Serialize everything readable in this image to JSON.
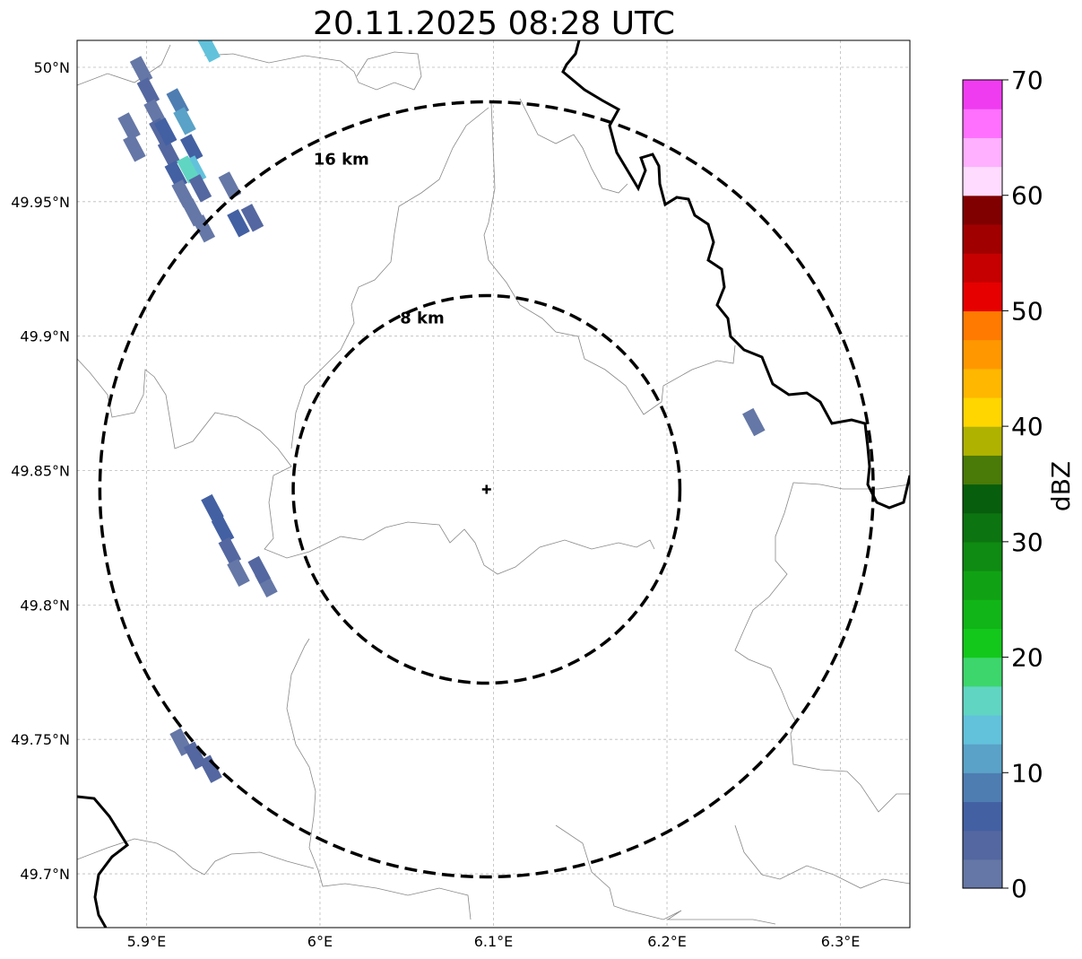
{
  "title": "20.11.2025 08:28 UTC",
  "map": {
    "lon_range": [
      5.86,
      6.34
    ],
    "lat_range": [
      49.68,
      50.01
    ],
    "lon_ticks": [
      {
        "value": 5.9,
        "label": "5.9°E"
      },
      {
        "value": 6.0,
        "label": "6°E"
      },
      {
        "value": 6.1,
        "label": "6.1°E"
      },
      {
        "value": 6.2,
        "label": "6.2°E"
      },
      {
        "value": 6.3,
        "label": "6.3°E"
      }
    ],
    "lat_ticks": [
      {
        "value": 50.0,
        "label": "50°N"
      },
      {
        "value": 49.95,
        "label": "49.95°N"
      },
      {
        "value": 49.9,
        "label": "49.9°N"
      },
      {
        "value": 49.85,
        "label": "49.85°N"
      },
      {
        "value": 49.8,
        "label": "49.8°N"
      },
      {
        "value": 49.75,
        "label": "49.75°N"
      },
      {
        "value": 49.7,
        "label": "49.7°N"
      }
    ],
    "radar_center": {
      "lon": 6.096,
      "lat": 49.843
    },
    "range_rings": [
      {
        "radius_km": 8,
        "label": "8 km"
      },
      {
        "radius_km": 16,
        "label": "16 km"
      }
    ],
    "echo_cells": [
      {
        "lon": 5.897,
        "lat": 49.999,
        "dbz": 2
      },
      {
        "lon": 5.901,
        "lat": 49.991,
        "dbz": 3
      },
      {
        "lon": 5.905,
        "lat": 49.983,
        "dbz": 1
      },
      {
        "lon": 5.908,
        "lat": 49.976,
        "dbz": 4
      },
      {
        "lon": 5.913,
        "lat": 49.968,
        "dbz": 3
      },
      {
        "lon": 5.917,
        "lat": 49.96,
        "dbz": 5
      },
      {
        "lon": 5.921,
        "lat": 49.953,
        "dbz": 2
      },
      {
        "lon": 5.927,
        "lat": 49.946,
        "dbz": 1
      },
      {
        "lon": 5.933,
        "lat": 49.94,
        "dbz": 0
      },
      {
        "lon": 5.89,
        "lat": 49.978,
        "dbz": 0
      },
      {
        "lon": 5.893,
        "lat": 49.97,
        "dbz": 1
      },
      {
        "lon": 5.918,
        "lat": 49.987,
        "dbz": 8
      },
      {
        "lon": 5.922,
        "lat": 49.98,
        "dbz": 10
      },
      {
        "lon": 5.926,
        "lat": 49.97,
        "dbz": 6
      },
      {
        "lon": 5.928,
        "lat": 49.962,
        "dbz": 14
      },
      {
        "lon": 5.924,
        "lat": 49.962,
        "dbz": 16
      },
      {
        "lon": 5.931,
        "lat": 49.955,
        "dbz": 4
      },
      {
        "lon": 5.911,
        "lat": 49.976,
        "dbz": 7
      },
      {
        "lon": 5.936,
        "lat": 50.007,
        "dbz": 13
      },
      {
        "lon": 5.948,
        "lat": 49.956,
        "dbz": 2
      },
      {
        "lon": 5.953,
        "lat": 49.942,
        "dbz": 6
      },
      {
        "lon": 5.961,
        "lat": 49.944,
        "dbz": 4
      },
      {
        "lon": 5.938,
        "lat": 49.836,
        "dbz": 7
      },
      {
        "lon": 5.944,
        "lat": 49.828,
        "dbz": 5
      },
      {
        "lon": 5.948,
        "lat": 49.82,
        "dbz": 3
      },
      {
        "lon": 5.953,
        "lat": 49.812,
        "dbz": 1
      },
      {
        "lon": 5.969,
        "lat": 49.808,
        "dbz": 2
      },
      {
        "lon": 5.965,
        "lat": 49.813,
        "dbz": 3
      },
      {
        "lon": 6.25,
        "lat": 49.868,
        "dbz": 1
      },
      {
        "lon": 5.92,
        "lat": 49.749,
        "dbz": 2
      },
      {
        "lon": 5.928,
        "lat": 49.744,
        "dbz": 4
      },
      {
        "lon": 5.937,
        "lat": 49.739,
        "dbz": 3
      }
    ]
  },
  "colorbar": {
    "label": "dBZ",
    "min": 0,
    "max": 70,
    "tick_labels": [
      "0",
      "10",
      "20",
      "30",
      "40",
      "50",
      "60",
      "70"
    ],
    "colors": [
      "#6577a6",
      "#5467a0",
      "#4360a3",
      "#4e7db2",
      "#5aa2c7",
      "#62c2dc",
      "#60d6c2",
      "#3dd66c",
      "#13c81b",
      "#11b517",
      "#10a214",
      "#0f8a12",
      "#0c7410",
      "#075e0c",
      "#4a7a07",
      "#b0b200",
      "#ffd600",
      "#ffb700",
      "#ff9800",
      "#ff7a00",
      "#e60000",
      "#c60000",
      "#a00000",
      "#800000",
      "#ffdcff",
      "#ffb0ff",
      "#ff70ff",
      "#f03cf0"
    ]
  }
}
